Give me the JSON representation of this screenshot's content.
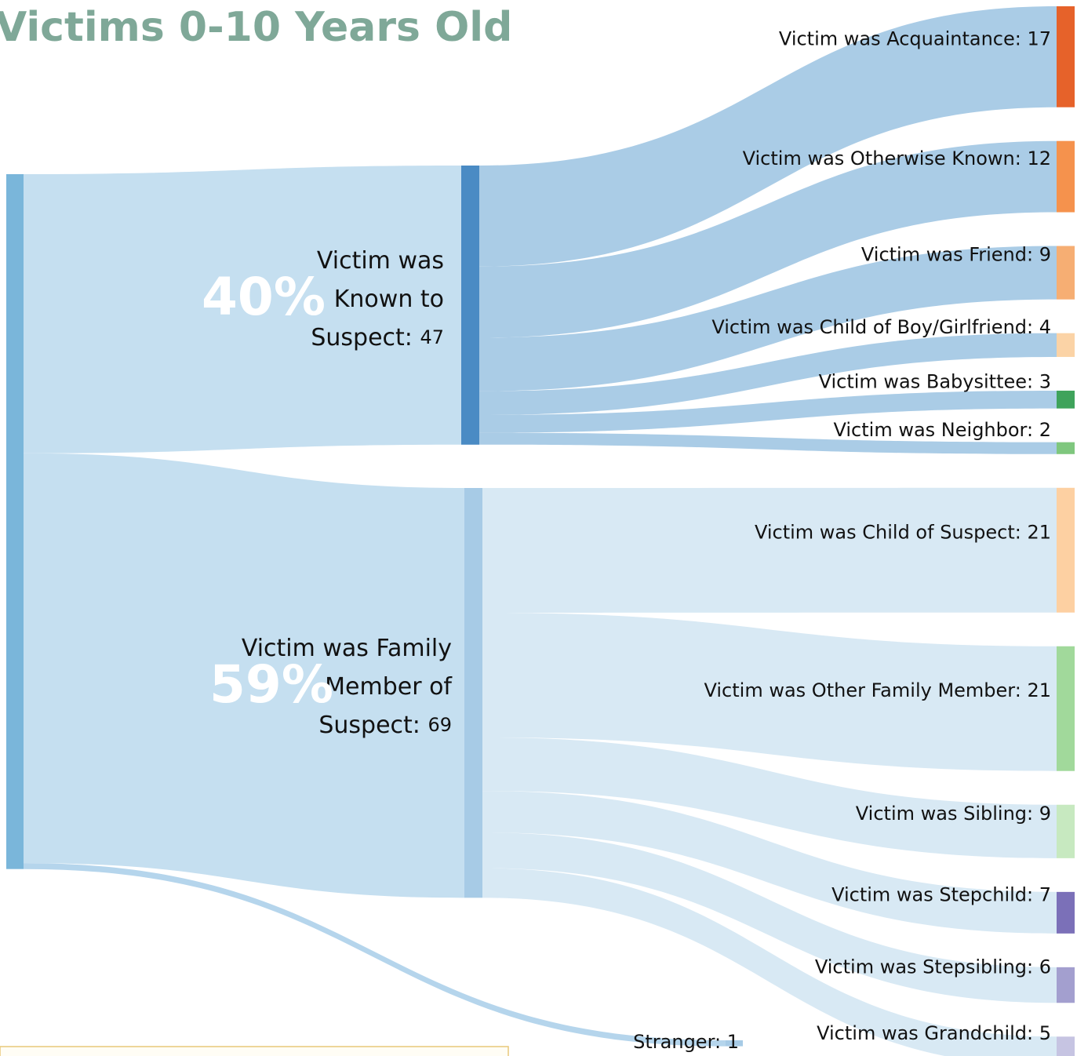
{
  "chart_data": {
    "type": "sankey",
    "title": "Victims 0-10 Years Old",
    "root_color": "#7ab6da",
    "groups": [
      {
        "label_lines": [
          "Victim was",
          "Known to",
          "Suspect:"
        ],
        "value": 47,
        "percent": 40,
        "percent_label": "40%",
        "color": "#4a8bc4",
        "link_color": "#c5dff0",
        "child_link_color": "#aacce6",
        "children": [
          {
            "label": "Victim was Acquaintance: 17",
            "value": 17,
            "color": "#e6622a"
          },
          {
            "label": "Victim was Otherwise Known: 12",
            "value": 12,
            "color": "#f5924d"
          },
          {
            "label": "Victim was Friend: 9",
            "value": 9,
            "color": "#f6ae73"
          },
          {
            "label": "Victim was Child of Boy/Girlfriend: 4",
            "value": 4,
            "color": "#fbd3a6"
          },
          {
            "label": "Victim was Babysittee: 3",
            "value": 3,
            "color": "#3fa35b"
          },
          {
            "label": "Victim was Neighbor: 2",
            "value": 2,
            "color": "#7fc77e"
          }
        ]
      },
      {
        "label_lines": [
          "Victim was Family",
          "Member of",
          "Suspect:"
        ],
        "value": 69,
        "percent": 59,
        "percent_label": "59%",
        "color": "#a7cbe6",
        "link_color": "#c5dff0",
        "child_link_color": "#d8e9f4",
        "children": [
          {
            "label": "Victim was Child of Suspect: 21",
            "value": 21,
            "color": "#fdd0a2"
          },
          {
            "label": "Victim was Other Family Member: 21",
            "value": 21,
            "color": "#a1d99b"
          },
          {
            "label": "Victim was Sibling: 9",
            "value": 9,
            "color": "#c7e9c0"
          },
          {
            "label": "Victim was Stepchild: 7",
            "value": 7,
            "color": "#7b70b8"
          },
          {
            "label": "Victim was Stepsibling: 6",
            "value": 6,
            "color": "#a39fcf"
          },
          {
            "label": "Victim was Grandchild: 5",
            "value": 5,
            "color": "#c6c4e2"
          }
        ]
      },
      {
        "label": "Stranger: 1",
        "value": 1,
        "color": "#a7cbe6",
        "link_color": "#b5d5ec"
      }
    ]
  }
}
